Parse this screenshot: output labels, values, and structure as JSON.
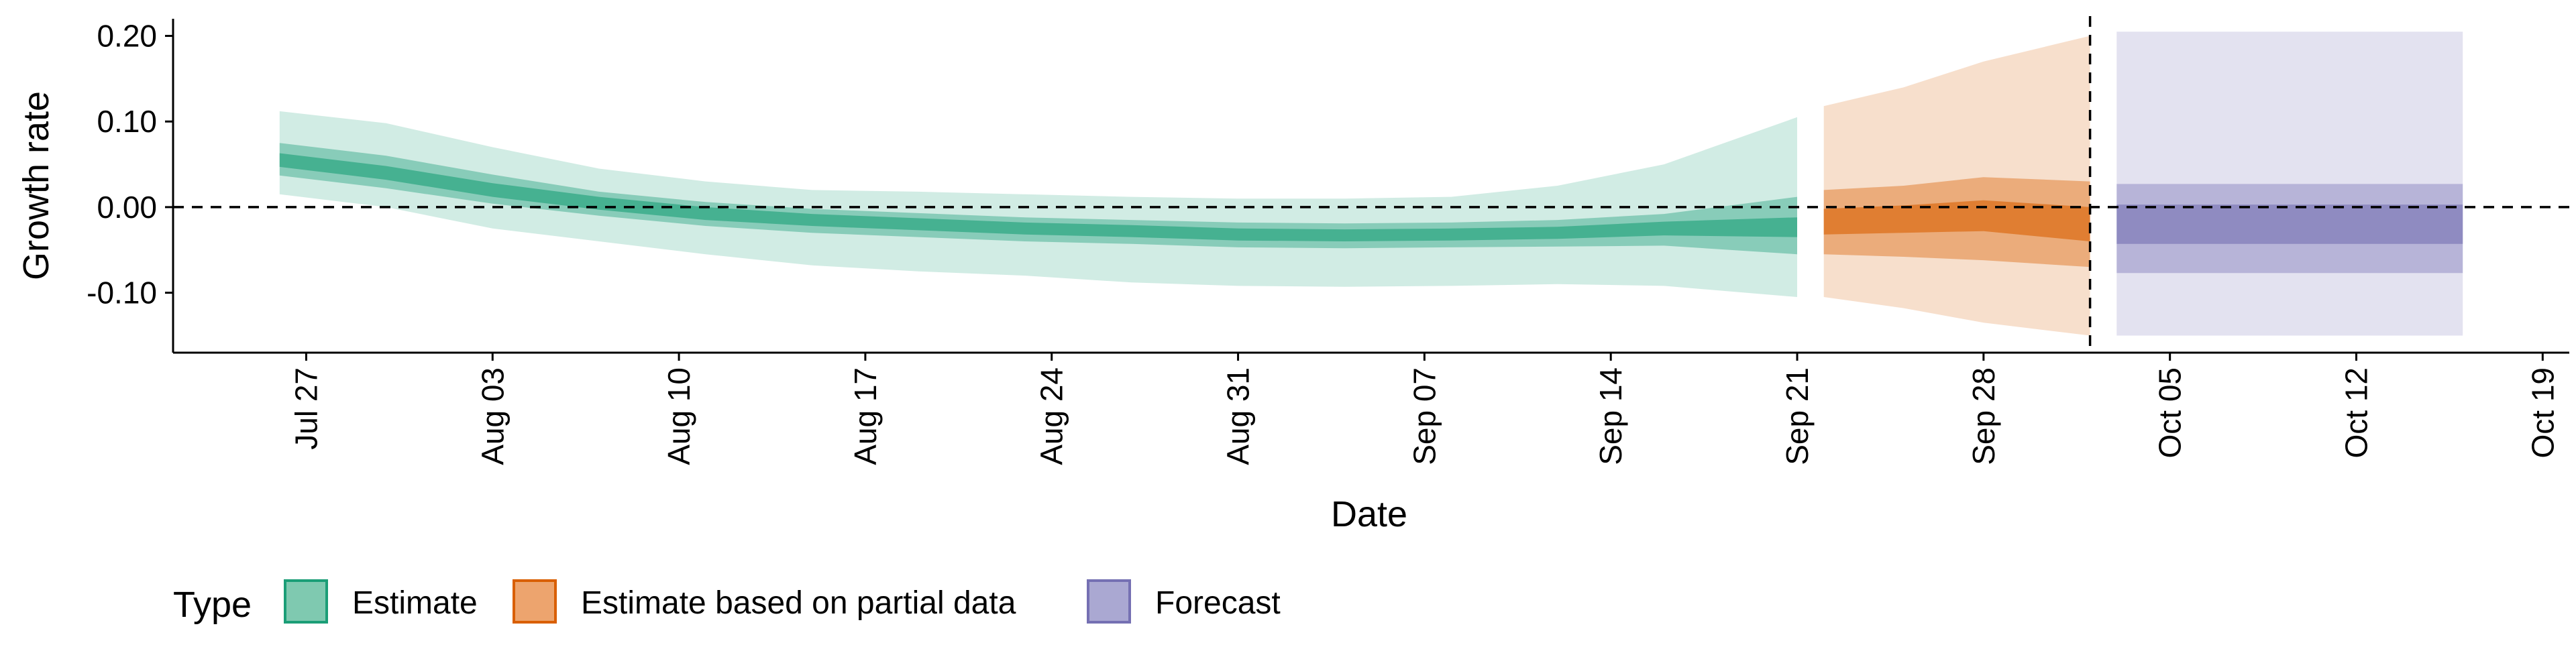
{
  "chart_data": {
    "type": "area",
    "title": "",
    "xlabel": "Date",
    "ylabel": "Growth rate",
    "x_axis": {
      "type": "date",
      "tick_dates": [
        "2020-07-27",
        "2020-08-03",
        "2020-08-10",
        "2020-08-17",
        "2020-08-24",
        "2020-08-31",
        "2020-09-07",
        "2020-09-14",
        "2020-09-21",
        "2020-09-28",
        "2020-10-05",
        "2020-10-12",
        "2020-10-19"
      ],
      "tick_labels": [
        "Jul 27",
        "Aug 03",
        "Aug 10",
        "Aug 17",
        "Aug 24",
        "Aug 31",
        "Sep 07",
        "Sep 14",
        "Sep 21",
        "Sep 28",
        "Oct 05",
        "Oct 12",
        "Oct 19"
      ],
      "range": [
        "2020-07-22",
        "2020-10-20"
      ]
    },
    "y_axis": {
      "ticks": [
        -0.1,
        0.0,
        0.1,
        0.2
      ],
      "tick_labels": [
        "-0.10",
        "0.00",
        "0.10",
        "0.20"
      ],
      "range": [
        -0.17,
        0.22
      ]
    },
    "reference_lines": {
      "horizontal_y": 0.0,
      "vertical_date": "2020-10-02"
    },
    "legend": {
      "title": "Type",
      "position": "bottom-left",
      "items": [
        {
          "label": "Estimate",
          "fill": "#7fc9b0",
          "border": "#1b9e77"
        },
        {
          "label": "Estimate based on partial data",
          "fill": "#eda46e",
          "border": "#d95f02"
        },
        {
          "label": "Forecast",
          "fill": "#aaa8d2",
          "border": "#7570b3"
        }
      ]
    },
    "colors": {
      "estimate": "#1b9e77",
      "partial": "#d95f02",
      "forecast": "#7570b3"
    },
    "series": [
      {
        "name": "Estimate",
        "bands": [
          "90% interval",
          "50% interval",
          "20% interval"
        ],
        "points": [
          {
            "date": "2020-07-26",
            "median": 0.055,
            "lower_90": 0.015,
            "upper_90": 0.112,
            "lower_50": 0.037,
            "upper_50": 0.075,
            "lower_20": 0.047,
            "upper_20": 0.063
          },
          {
            "date": "2020-07-30",
            "median": 0.04,
            "lower_90": 0.0,
            "upper_90": 0.098,
            "lower_50": 0.022,
            "upper_50": 0.06,
            "lower_20": 0.032,
            "upper_20": 0.048
          },
          {
            "date": "2020-08-03",
            "median": 0.02,
            "lower_90": -0.025,
            "upper_90": 0.07,
            "lower_50": 0.004,
            "upper_50": 0.038,
            "lower_20": 0.012,
            "upper_20": 0.028
          },
          {
            "date": "2020-08-07",
            "median": 0.005,
            "lower_90": -0.04,
            "upper_90": 0.045,
            "lower_50": -0.01,
            "upper_50": 0.018,
            "lower_20": -0.003,
            "upper_20": 0.012
          },
          {
            "date": "2020-08-11",
            "median": -0.008,
            "lower_90": -0.055,
            "upper_90": 0.03,
            "lower_50": -0.022,
            "upper_50": 0.006,
            "lower_20": -0.015,
            "upper_20": 0.0
          },
          {
            "date": "2020-08-15",
            "median": -0.015,
            "lower_90": -0.068,
            "upper_90": 0.02,
            "lower_50": -0.03,
            "upper_50": -0.002,
            "lower_20": -0.022,
            "upper_20": -0.008
          },
          {
            "date": "2020-08-19",
            "median": -0.02,
            "lower_90": -0.075,
            "upper_90": 0.018,
            "lower_50": -0.035,
            "upper_50": -0.007,
            "lower_20": -0.027,
            "upper_20": -0.013
          },
          {
            "date": "2020-08-23",
            "median": -0.025,
            "lower_90": -0.08,
            "upper_90": 0.015,
            "lower_50": -0.04,
            "upper_50": -0.012,
            "lower_20": -0.032,
            "upper_20": -0.018
          },
          {
            "date": "2020-08-27",
            "median": -0.028,
            "lower_90": -0.088,
            "upper_90": 0.012,
            "lower_50": -0.043,
            "upper_50": -0.015,
            "lower_20": -0.035,
            "upper_20": -0.021
          },
          {
            "date": "2020-08-31",
            "median": -0.032,
            "lower_90": -0.092,
            "upper_90": 0.01,
            "lower_50": -0.047,
            "upper_50": -0.018,
            "lower_20": -0.039,
            "upper_20": -0.025
          },
          {
            "date": "2020-09-04",
            "median": -0.033,
            "lower_90": -0.093,
            "upper_90": 0.01,
            "lower_50": -0.048,
            "upper_50": -0.019,
            "lower_20": -0.04,
            "upper_20": -0.026
          },
          {
            "date": "2020-09-08",
            "median": -0.032,
            "lower_90": -0.092,
            "upper_90": 0.012,
            "lower_50": -0.047,
            "upper_50": -0.018,
            "lower_20": -0.039,
            "upper_20": -0.025
          },
          {
            "date": "2020-09-12",
            "median": -0.03,
            "lower_90": -0.09,
            "upper_90": 0.025,
            "lower_50": -0.046,
            "upper_50": -0.015,
            "lower_20": -0.037,
            "upper_20": -0.023
          },
          {
            "date": "2020-09-16",
            "median": -0.025,
            "lower_90": -0.092,
            "upper_90": 0.05,
            "lower_50": -0.045,
            "upper_50": -0.008,
            "lower_20": -0.033,
            "upper_20": -0.017
          },
          {
            "date": "2020-09-21",
            "median": -0.025,
            "lower_90": -0.105,
            "upper_90": 0.105,
            "lower_50": -0.055,
            "upper_50": 0.012,
            "lower_20": -0.035,
            "upper_20": -0.012
          }
        ]
      },
      {
        "name": "Estimate based on partial data",
        "bands": [
          "90% interval",
          "50% interval",
          "20% interval"
        ],
        "points": [
          {
            "date": "2020-09-22",
            "median": -0.018,
            "lower_90": -0.105,
            "upper_90": 0.118,
            "lower_50": -0.055,
            "upper_50": 0.02,
            "lower_20": -0.032,
            "upper_20": -0.002
          },
          {
            "date": "2020-09-25",
            "median": -0.015,
            "lower_90": -0.118,
            "upper_90": 0.14,
            "lower_50": -0.058,
            "upper_50": 0.025,
            "lower_20": -0.03,
            "upper_20": 0.002
          },
          {
            "date": "2020-09-28",
            "median": -0.012,
            "lower_90": -0.135,
            "upper_90": 0.17,
            "lower_50": -0.062,
            "upper_50": 0.035,
            "lower_20": -0.028,
            "upper_20": 0.008
          },
          {
            "date": "2020-10-02",
            "median": -0.02,
            "lower_90": -0.15,
            "upper_90": 0.2,
            "lower_50": -0.07,
            "upper_50": 0.03,
            "lower_20": -0.04,
            "upper_20": 0.0
          }
        ]
      },
      {
        "name": "Forecast",
        "bands": [
          "90% interval",
          "50% interval",
          "20% interval"
        ],
        "points": [
          {
            "date": "2020-10-03",
            "median": -0.008,
            "lower_90": -0.15,
            "upper_90": 0.205,
            "lower_50": -0.077,
            "upper_50": 0.027,
            "lower_20": -0.043,
            "upper_20": 0.003
          },
          {
            "date": "2020-10-16",
            "median": -0.008,
            "lower_90": -0.15,
            "upper_90": 0.205,
            "lower_50": -0.077,
            "upper_50": 0.027,
            "lower_20": -0.043,
            "upper_20": 0.003
          }
        ]
      }
    ]
  }
}
